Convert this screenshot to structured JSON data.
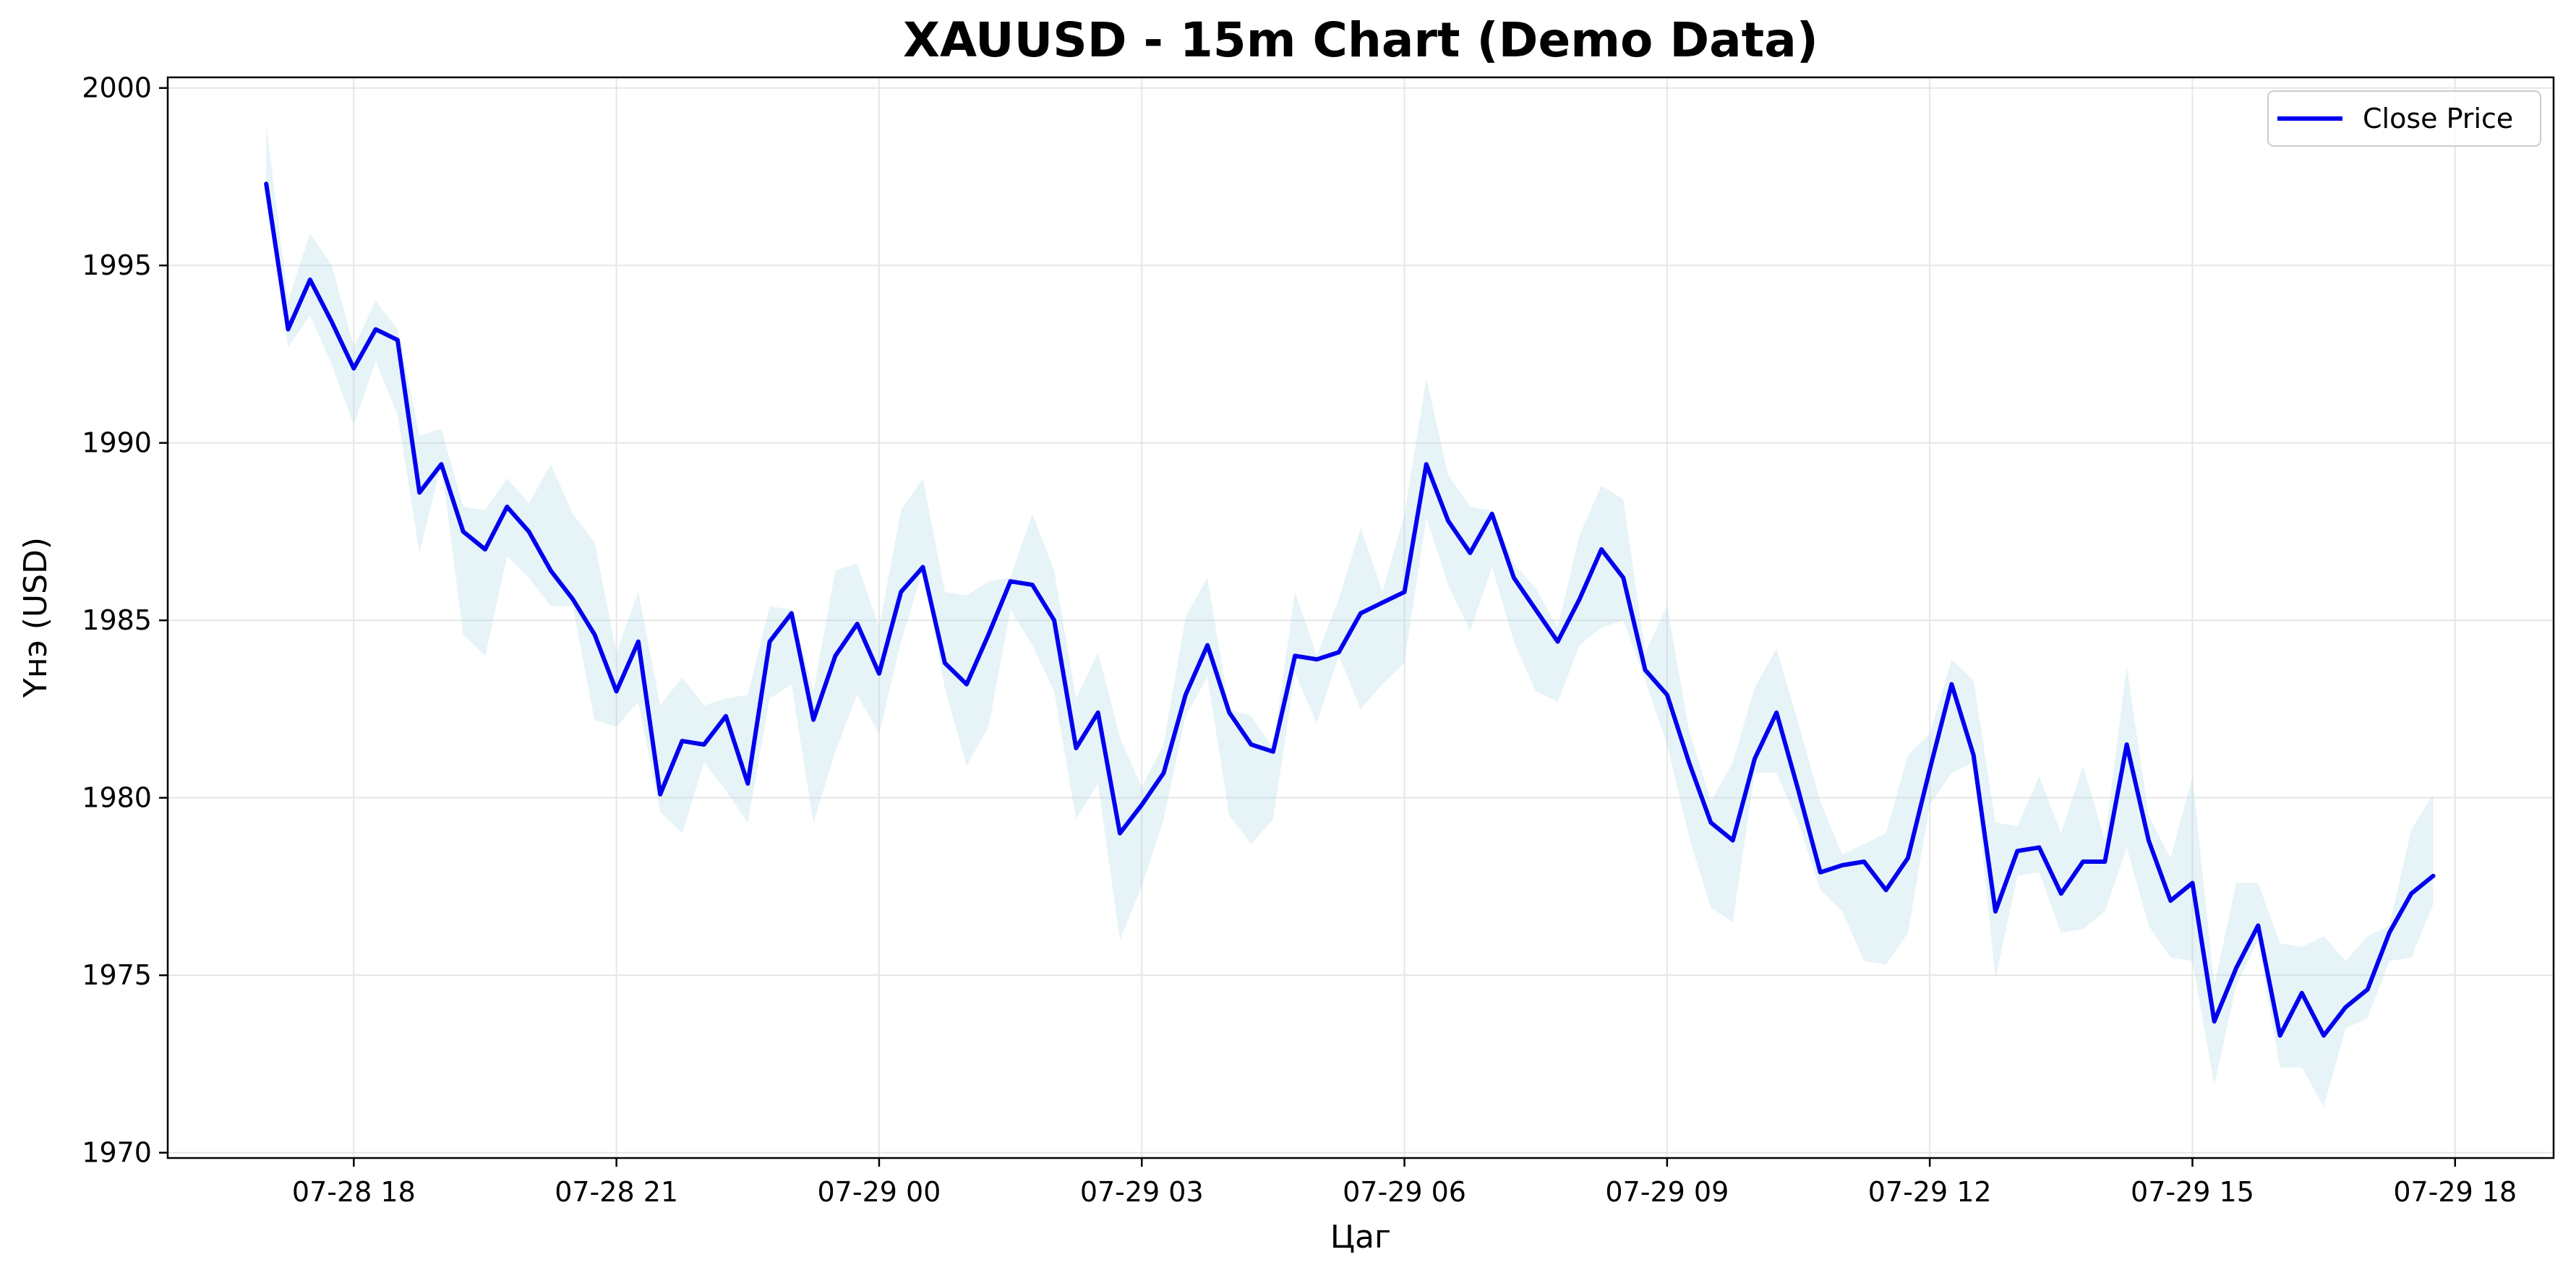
{
  "chart_data": {
    "type": "line",
    "title": "XAUUSD - 15m Chart (Demo Data)",
    "xlabel": "Цаг",
    "ylabel": "Үнэ (USD)",
    "ylim": [
      1970,
      2000
    ],
    "yticks": [
      1970,
      1975,
      1980,
      1985,
      1990,
      1995,
      2000
    ],
    "x_start": "2025-07-28 17:00",
    "x_end": "2025-07-29 18:00",
    "x_interval_minutes": 15,
    "xticks": [
      {
        "t": "2025-07-28 18:00",
        "label": "07-28 18"
      },
      {
        "t": "2025-07-28 21:00",
        "label": "07-28 21"
      },
      {
        "t": "2025-07-29 00:00",
        "label": "07-29 00"
      },
      {
        "t": "2025-07-29 03:00",
        "label": "07-29 03"
      },
      {
        "t": "2025-07-29 06:00",
        "label": "07-29 06"
      },
      {
        "t": "2025-07-29 09:00",
        "label": "07-29 09"
      },
      {
        "t": "2025-07-29 12:00",
        "label": "07-29 12"
      },
      {
        "t": "2025-07-29 15:00",
        "label": "07-29 15"
      },
      {
        "t": "2025-07-29 18:00",
        "label": "07-29 18"
      }
    ],
    "grid": true,
    "legend_position": "upper-right",
    "colors": {
      "line": "#0000ee",
      "band": "#add8e6",
      "grid": "#e6e6e6"
    },
    "series": [
      {
        "name": "Close Price",
        "values": [
          1997.3,
          1993.2,
          1994.6,
          1993.4,
          1992.1,
          1993.2,
          1992.9,
          1988.6,
          1989.4,
          1987.5,
          1987.0,
          1988.2,
          1987.5,
          1986.4,
          1985.6,
          1984.6,
          1983.0,
          1984.4,
          1980.1,
          1981.6,
          1981.5,
          1982.3,
          1980.4,
          1984.4,
          1985.2,
          1982.2,
          1984.0,
          1984.9,
          1983.5,
          1985.8,
          1986.5,
          1983.8,
          1983.2,
          1984.6,
          1986.1,
          1986.0,
          1985.0,
          1981.4,
          1982.4,
          1979.0,
          1979.8,
          1980.7,
          1982.9,
          1984.3,
          1982.4,
          1981.5,
          1981.3,
          1984.0,
          1983.9,
          1984.1,
          1985.2,
          1985.5,
          1985.8,
          1989.4,
          1987.8,
          1986.9,
          1988.0,
          1986.2,
          1985.3,
          1984.4,
          1985.6,
          1987.0,
          1986.2,
          1983.6,
          1982.9,
          1981.0,
          1979.3,
          1978.8,
          1981.1,
          1982.4,
          1980.2,
          1977.9,
          1978.1,
          1978.2,
          1977.4,
          1978.3,
          1980.8,
          1983.2,
          1981.2,
          1976.8,
          1978.5,
          1978.6,
          1977.3,
          1978.2,
          1978.2,
          1981.5,
          1978.8,
          1977.1,
          1977.6,
          1973.7,
          1975.2,
          1976.4,
          1973.3,
          1974.5,
          1973.3,
          1974.1,
          1974.6,
          1976.2,
          1977.3,
          1977.8
        ]
      }
    ],
    "band": {
      "upper": [
        1999.0,
        1994.0,
        1995.9,
        1995.0,
        1992.7,
        1994.0,
        1993.2,
        1990.2,
        1990.4,
        1988.2,
        1988.1,
        1989.0,
        1988.3,
        1989.4,
        1988.0,
        1987.2,
        1984.1,
        1985.8,
        1982.6,
        1983.4,
        1982.6,
        1982.8,
        1982.9,
        1985.4,
        1985.3,
        1983.0,
        1986.4,
        1986.6,
        1984.8,
        1988.1,
        1989.0,
        1985.8,
        1985.7,
        1986.1,
        1986.2,
        1988.0,
        1986.4,
        1982.8,
        1984.1,
        1981.7,
        1980.3,
        1981.5,
        1985.1,
        1986.2,
        1982.5,
        1982.3,
        1981.4,
        1985.8,
        1984.0,
        1985.6,
        1987.6,
        1985.8,
        1988.0,
        1991.8,
        1989.1,
        1988.2,
        1988.1,
        1986.6,
        1985.9,
        1984.8,
        1987.4,
        1988.8,
        1988.4,
        1984.1,
        1985.4,
        1981.9,
        1979.9,
        1981.0,
        1983.1,
        1984.2,
        1982.1,
        1979.9,
        1978.4,
        1978.7,
        1979.0,
        1981.2,
        1981.8,
        1983.9,
        1983.3,
        1979.3,
        1979.2,
        1980.6,
        1979.0,
        1980.9,
        1978.8,
        1983.7,
        1979.5,
        1978.3,
        1980.6,
        1974.7,
        1977.6,
        1977.6,
        1975.9,
        1975.8,
        1976.1,
        1975.4,
        1976.1,
        1976.4,
        1979.1,
        1980.1
      ],
      "lower": [
        1997.3,
        1992.7,
        1993.6,
        1992.2,
        1990.5,
        1992.3,
        1990.8,
        1986.9,
        1989.4,
        1984.6,
        1984.0,
        1986.8,
        1986.2,
        1985.4,
        1985.4,
        1982.2,
        1982.0,
        1982.7,
        1979.6,
        1979.0,
        1981.0,
        1980.2,
        1979.3,
        1982.8,
        1983.2,
        1979.3,
        1981.3,
        1982.9,
        1981.8,
        1984.4,
        1986.4,
        1983.1,
        1980.9,
        1982.0,
        1985.3,
        1984.3,
        1983.0,
        1979.4,
        1980.4,
        1976.0,
        1977.5,
        1979.4,
        1982.3,
        1983.4,
        1979.5,
        1978.7,
        1979.4,
        1983.5,
        1982.1,
        1984.0,
        1982.5,
        1983.2,
        1983.8,
        1987.9,
        1986.0,
        1984.7,
        1986.5,
        1984.4,
        1983.0,
        1982.7,
        1984.3,
        1984.8,
        1985.0,
        1983.3,
        1981.5,
        1978.9,
        1976.9,
        1976.5,
        1980.7,
        1980.7,
        1979.3,
        1977.4,
        1976.8,
        1975.4,
        1975.3,
        1976.2,
        1979.8,
        1980.7,
        1981.0,
        1974.9,
        1977.8,
        1977.9,
        1976.2,
        1976.3,
        1976.8,
        1978.6,
        1976.4,
        1975.5,
        1975.4,
        1971.9,
        1974.7,
        1976.0,
        1972.4,
        1972.4,
        1971.3,
        1973.5,
        1973.8,
        1975.4,
        1975.5,
        1977.0
      ]
    }
  }
}
